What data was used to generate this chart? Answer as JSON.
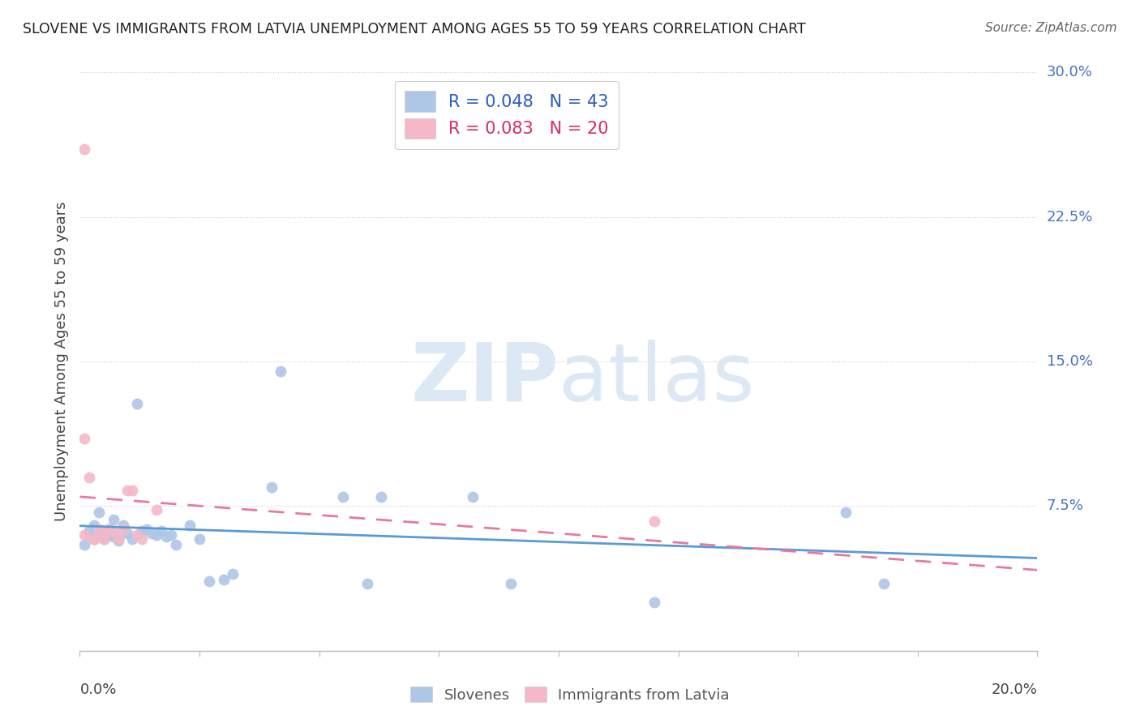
{
  "title": "SLOVENE VS IMMIGRANTS FROM LATVIA UNEMPLOYMENT AMONG AGES 55 TO 59 YEARS CORRELATION CHART",
  "source": "Source: ZipAtlas.com",
  "ylabel": "Unemployment Among Ages 55 to 59 years",
  "xlim": [
    0.0,
    0.2
  ],
  "ylim": [
    0.0,
    0.3
  ],
  "ytick_vals": [
    0.075,
    0.15,
    0.225,
    0.3
  ],
  "ytick_labels": [
    "7.5%",
    "15.0%",
    "22.5%",
    "30.0%"
  ],
  "slovene_color": "#aec6e8",
  "latvia_color": "#f4b8c8",
  "trendline_slovene_color": "#5b9bd5",
  "trendline_latvia_color": "#e879a0",
  "watermark_color": "#dce9f5",
  "slovene_x": [
    0.001,
    0.002,
    0.002,
    0.003,
    0.003,
    0.004,
    0.004,
    0.005,
    0.005,
    0.006,
    0.006,
    0.007,
    0.007,
    0.007,
    0.008,
    0.008,
    0.009,
    0.01,
    0.011,
    0.012,
    0.013,
    0.014,
    0.015,
    0.016,
    0.017,
    0.018,
    0.019,
    0.02,
    0.023,
    0.025,
    0.027,
    0.03,
    0.032,
    0.04,
    0.042,
    0.055,
    0.06,
    0.063,
    0.082,
    0.09,
    0.12,
    0.16,
    0.168
  ],
  "slovene_y": [
    0.055,
    0.06,
    0.062,
    0.065,
    0.058,
    0.06,
    0.072,
    0.058,
    0.062,
    0.06,
    0.063,
    0.068,
    0.06,
    0.059,
    0.058,
    0.057,
    0.065,
    0.061,
    0.058,
    0.128,
    0.062,
    0.063,
    0.061,
    0.06,
    0.062,
    0.059,
    0.06,
    0.055,
    0.065,
    0.058,
    0.036,
    0.037,
    0.04,
    0.085,
    0.145,
    0.08,
    0.035,
    0.08,
    0.08,
    0.035,
    0.025,
    0.072,
    0.035
  ],
  "latvia_x": [
    0.001,
    0.001,
    0.002,
    0.003,
    0.003,
    0.004,
    0.005,
    0.006,
    0.006,
    0.007,
    0.008,
    0.009,
    0.01,
    0.011,
    0.012,
    0.013,
    0.016,
    0.12,
    0.001,
    0.005
  ],
  "latvia_y": [
    0.06,
    0.11,
    0.09,
    0.058,
    0.058,
    0.063,
    0.062,
    0.062,
    0.063,
    0.062,
    0.058,
    0.063,
    0.083,
    0.083,
    0.06,
    0.058,
    0.073,
    0.067,
    0.26,
    0.058
  ]
}
